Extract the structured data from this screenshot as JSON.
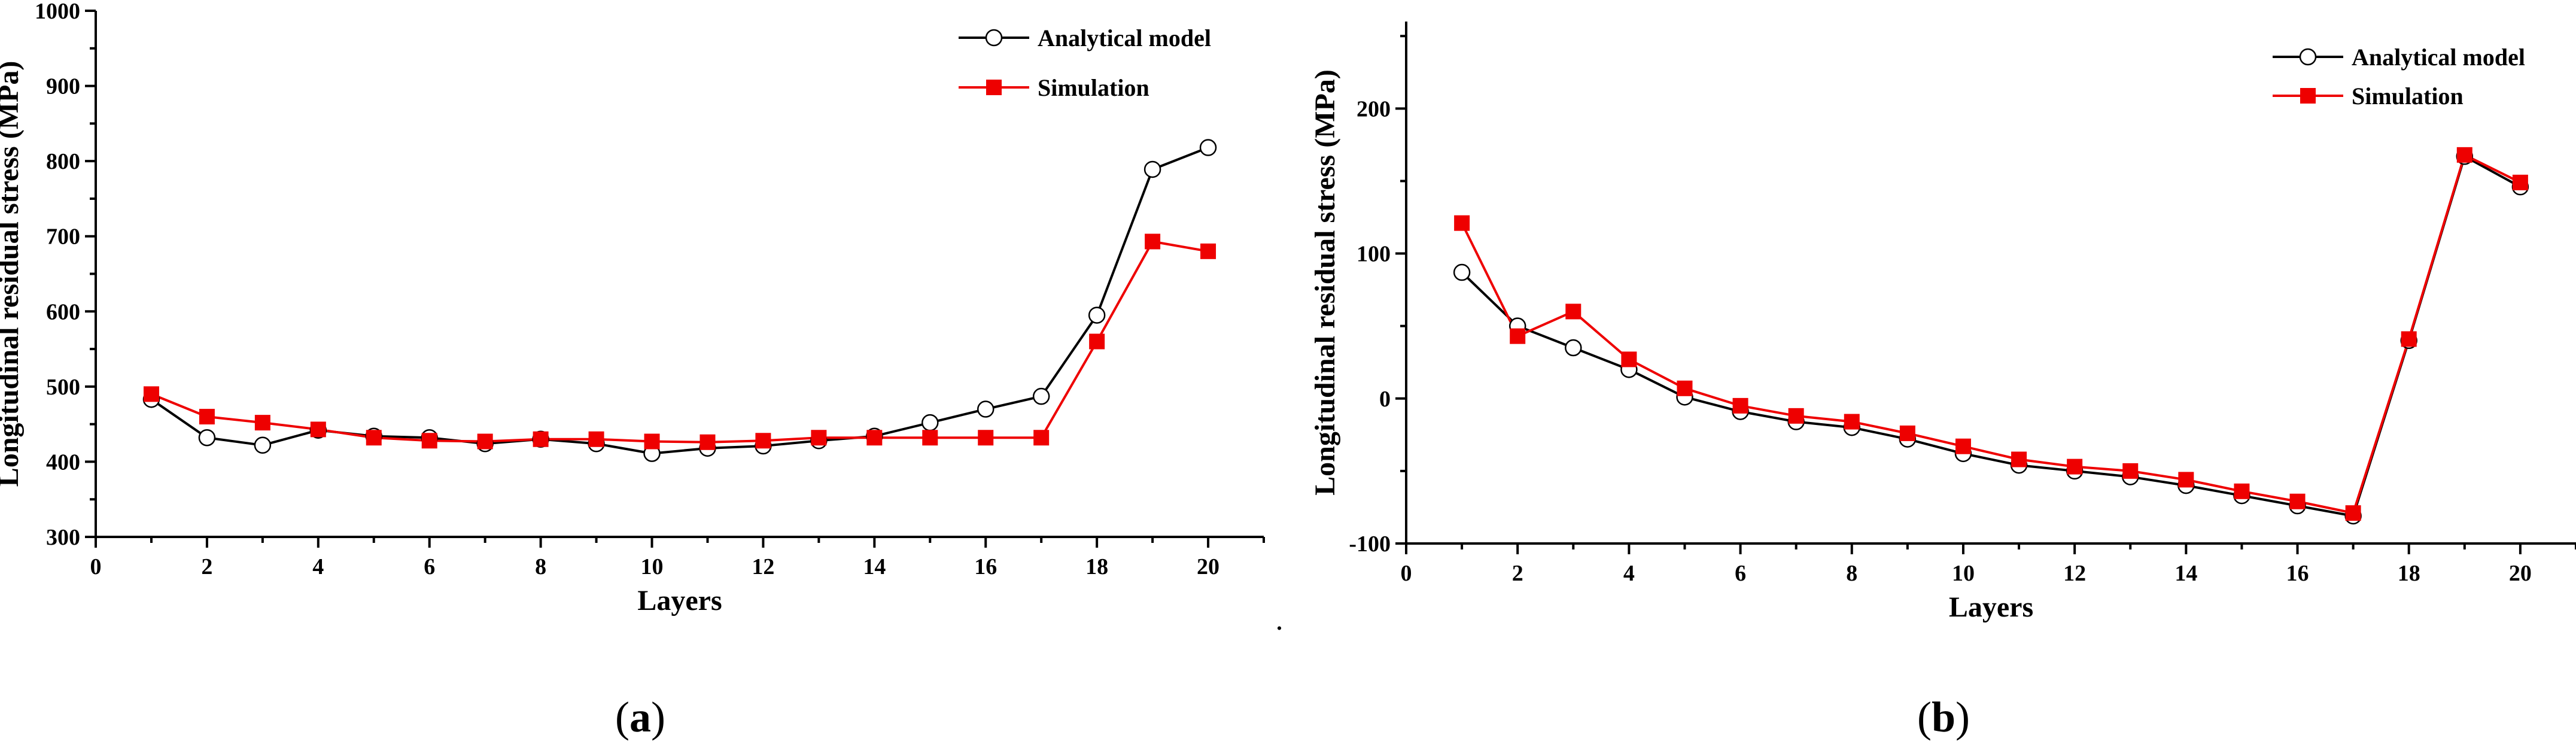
{
  "chart_data": [
    {
      "type": "line",
      "panel_label": "a",
      "caption_open": "(",
      "caption_close": ")",
      "xlabel": "Layers",
      "ylabel": "Longitudinal residual stress (MPa)",
      "xlim": [
        0,
        21
      ],
      "ylim": [
        300,
        1000
      ],
      "xticks": [
        0,
        2,
        4,
        6,
        8,
        10,
        12,
        14,
        16,
        18,
        20
      ],
      "yticks": [
        300,
        400,
        500,
        600,
        700,
        800,
        900,
        1000
      ],
      "legend_position": "top-right",
      "x": [
        1,
        2,
        3,
        4,
        5,
        6,
        7,
        8,
        9,
        10,
        11,
        12,
        13,
        14,
        15,
        16,
        17,
        18,
        19,
        20
      ],
      "series": [
        {
          "name": "Analytical model",
          "color": "#000000",
          "marker": "open-circle",
          "values": [
            483,
            432,
            422,
            442,
            434,
            432,
            424,
            430,
            424,
            411,
            418,
            421,
            428,
            434,
            452,
            470,
            487,
            595,
            789,
            818
          ]
        },
        {
          "name": "Simulation",
          "color": "#ee0000",
          "marker": "filled-square",
          "values": [
            490,
            460,
            452,
            443,
            432,
            428,
            427,
            430,
            430,
            427,
            426,
            428,
            432,
            432,
            432,
            432,
            432,
            560,
            693,
            680
          ]
        }
      ]
    },
    {
      "type": "line",
      "panel_label": "b",
      "caption_open": "(",
      "caption_close": ")",
      "xlabel": "Layers",
      "ylabel": "Longitudinal residual stress (MPa)",
      "xlim": [
        0,
        21
      ],
      "ylim": [
        -100,
        260
      ],
      "xticks": [
        0,
        2,
        4,
        6,
        8,
        10,
        12,
        14,
        16,
        18,
        20
      ],
      "yticks": [
        -100,
        0,
        100,
        200
      ],
      "legend_position": "top-right",
      "x": [
        1,
        2,
        3,
        4,
        5,
        6,
        7,
        8,
        9,
        10,
        11,
        12,
        13,
        14,
        15,
        16,
        17,
        18,
        19,
        20
      ],
      "series": [
        {
          "name": "Analytical model",
          "color": "#000000",
          "marker": "open-circle",
          "values": [
            87,
            50,
            35,
            20,
            1,
            -9,
            -16,
            -20,
            -28,
            -38,
            -46,
            -50,
            -54,
            -60,
            -67,
            -74,
            -81,
            40,
            167,
            146
          ]
        },
        {
          "name": "Simulation",
          "color": "#ee0000",
          "marker": "filled-square",
          "values": [
            121,
            43,
            60,
            27,
            7,
            -5,
            -12,
            -16,
            -24,
            -33,
            -42,
            -47,
            -50,
            -56,
            -64,
            -71,
            -79,
            41,
            168,
            149
          ]
        }
      ]
    }
  ],
  "separator_mark": "."
}
